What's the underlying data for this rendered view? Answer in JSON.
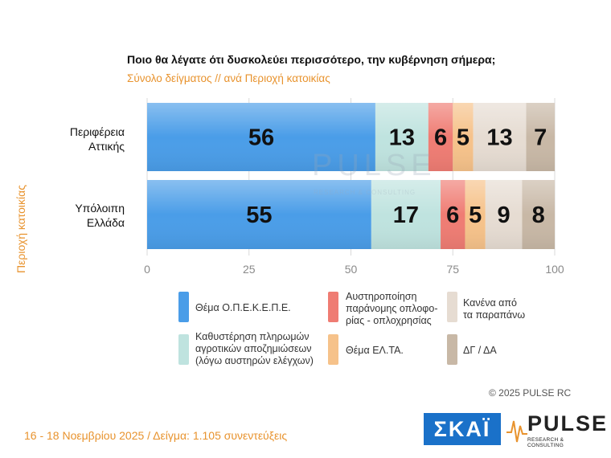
{
  "header": {
    "title": "Ποιο θα λέγατε ότι δυσκολεύει περισσότερο, την κυβέρνηση σήμερα;",
    "subtitle": "Σύνολο δείγματος // ανά Περιοχή κατοικίας"
  },
  "chart_data": {
    "type": "bar",
    "orientation": "horizontal",
    "stacked": true,
    "categories": [
      "Περιφέρεια Αττικής",
      "Υπόλοιπη Ελλάδα"
    ],
    "category_lines": [
      [
        "Περιφέρεια",
        "Αττικής"
      ],
      [
        "Υπόλοιπη",
        "Ελλάδα"
      ]
    ],
    "ylabel": "Περιοχή κατοικίας",
    "xlim": [
      0,
      100
    ],
    "xticks": [
      0,
      25,
      50,
      75,
      100
    ],
    "series": [
      {
        "name": "Θέμα Ο.Π.Ε.Κ.Ε.Π.Ε.",
        "color": "#4a9de8",
        "values": [
          56,
          55
        ]
      },
      {
        "name": "Καθυστέρηση πληρωμών αγροτικών αποζημιώσεων (λόγω αυστηρών ελέγχων)",
        "color": "#bfe3df",
        "values": [
          13,
          17
        ]
      },
      {
        "name": "Αυστηροποίηση παράνομης οπλοφορίας - οπλοχρησίας",
        "color": "#ef7c73",
        "values": [
          6,
          6
        ]
      },
      {
        "name": "Θέμα ΕΛ.ΤΑ.",
        "color": "#f6c28a",
        "values": [
          5,
          5
        ]
      },
      {
        "name": "Κανένα από τα παραπάνω",
        "color": "#e6dcd2",
        "values": [
          13,
          9
        ]
      },
      {
        "name": "ΔΓ / ΔΑ",
        "color": "#c8b8a6",
        "values": [
          7,
          8
        ]
      }
    ],
    "grid": true,
    "legend_position": "bottom"
  },
  "legend": [
    {
      "lines": [
        "Θέμα Ο.Π.Ε.Κ.Ε.Π.Ε."
      ],
      "color": "#4a9de8"
    },
    {
      "lines": [
        "Αυστηροποίηση",
        "παράνομης οπλοφο-",
        "ρίας - οπλοχρησίας"
      ],
      "color": "#ef7c73"
    },
    {
      "lines": [
        "Κανένα από",
        "τα παραπάνω"
      ],
      "color": "#e6dcd2"
    },
    {
      "lines": [
        "Καθυστέρηση πληρωμών",
        "αγροτικών αποζημιώσεων",
        "(λόγω αυστηρών ελέγχων)"
      ],
      "color": "#bfe3df"
    },
    {
      "lines": [
        "Θέμα ΕΛ.ΤΑ."
      ],
      "color": "#f6c28a"
    },
    {
      "lines": [
        "ΔΓ / ΔΑ"
      ],
      "color": "#c8b8a6"
    }
  ],
  "copyright": "©  2025  PULSE RC",
  "footer": "16 - 18 Νοεμβρίου 2025  /  Δείγμα:  1.105 συνεντεύξεις",
  "logos": {
    "skai": "ΣΚΑΪ",
    "pulse": "PULSE",
    "pulse_sub": "RESEARCH & CONSULTING",
    "watermark": "PULSE",
    "watermark_sub": "RESEARCH & CONSULTING"
  }
}
